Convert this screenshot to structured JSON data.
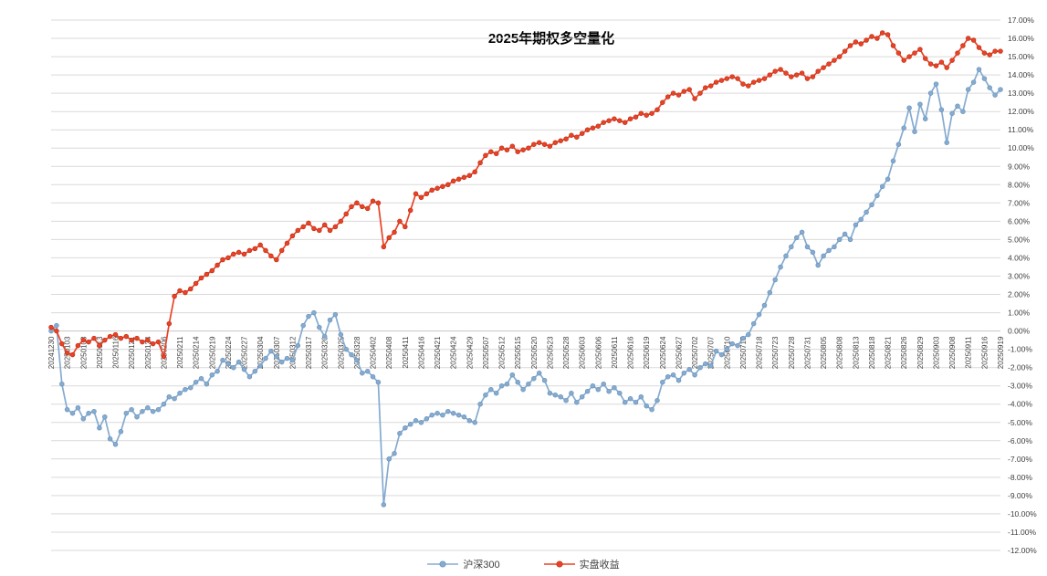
{
  "chart_data": {
    "type": "line",
    "title": "2025年期权多空量化",
    "grid": true,
    "legend_position": "bottom",
    "x_label_every": 3,
    "y_axis": {
      "min": -12,
      "max": 17,
      "step": 1,
      "format": "0.00%",
      "side": "right"
    },
    "x": [
      "20241230",
      "20241231",
      "20250102",
      "20250103",
      "20250106",
      "20250107",
      "20250108",
      "20250109",
      "20250110",
      "20250113",
      "20250114",
      "20250115",
      "20250116",
      "20250117",
      "20250120",
      "20250121",
      "20250122",
      "20250123",
      "20250124",
      "20250127",
      "20250205",
      "20250206",
      "20250207",
      "20250210",
      "20250211",
      "20250212",
      "20250213",
      "20250214",
      "20250217",
      "20250218",
      "20250219",
      "20250220",
      "20250221",
      "20250224",
      "20250225",
      "20250226",
      "20250227",
      "20250228",
      "20250303",
      "20250304",
      "20250305",
      "20250306",
      "20250307",
      "20250310",
      "20250311",
      "20250312",
      "20250313",
      "20250314",
      "20250317",
      "20250318",
      "20250319",
      "20250320",
      "20250321",
      "20250324",
      "20250325",
      "20250326",
      "20250327",
      "20250328",
      "20250331",
      "20250401",
      "20250402",
      "20250403",
      "20250407",
      "20250408",
      "20250409",
      "20250410",
      "20250411",
      "20250414",
      "20250415",
      "20250416",
      "20250417",
      "20250418",
      "20250421",
      "20250422",
      "20250423",
      "20250424",
      "20250425",
      "20250428",
      "20250429",
      "20250430",
      "20250506",
      "20250507",
      "20250508",
      "20250509",
      "20250512",
      "20250513",
      "20250514",
      "20250515",
      "20250516",
      "20250519",
      "20250520",
      "20250521",
      "20250522",
      "20250523",
      "20250526",
      "20250527",
      "20250528",
      "20250529",
      "20250530",
      "20250603",
      "20250604",
      "20250605",
      "20250606",
      "20250609",
      "20250610",
      "20250611",
      "20250612",
      "20250613",
      "20250616",
      "20250617",
      "20250618",
      "20250619",
      "20250620",
      "20250623",
      "20250624",
      "20250625",
      "20250626",
      "20250627",
      "20250630",
      "20250701",
      "20250702",
      "20250703",
      "20250704",
      "20250707",
      "20250708",
      "20250709",
      "20250710",
      "20250711",
      "20250714",
      "20250715",
      "20250716",
      "20250717",
      "20250718",
      "20250721",
      "20250722",
      "20250723",
      "20250724",
      "20250725",
      "20250728",
      "20250729",
      "20250730",
      "20250731",
      "20250801",
      "20250804",
      "20250805",
      "20250806",
      "20250807",
      "20250808",
      "20250811",
      "20250812",
      "20250813",
      "20250814",
      "20250815",
      "20250818",
      "20250819",
      "20250820",
      "20250821",
      "20250822",
      "20250825",
      "20250826",
      "20250827",
      "20250828",
      "20250829",
      "20250901",
      "20250902",
      "20250903",
      "20250904",
      "20250905",
      "20250908",
      "20250909",
      "20250910",
      "20250911",
      "20250912",
      "20250915",
      "20250916",
      "20250917",
      "20250918",
      "20250919"
    ],
    "series": [
      {
        "name": "沪深300",
        "color": "#85abd0",
        "marker_stroke": "#6b93b8",
        "values": [
          0.0,
          0.3,
          -2.9,
          -4.3,
          -4.5,
          -4.2,
          -4.8,
          -4.5,
          -4.4,
          -5.3,
          -4.7,
          -5.9,
          -6.2,
          -5.5,
          -4.5,
          -4.3,
          -4.7,
          -4.4,
          -4.2,
          -4.4,
          -4.3,
          -4.0,
          -3.6,
          -3.7,
          -3.4,
          -3.2,
          -3.1,
          -2.8,
          -2.6,
          -2.9,
          -2.4,
          -2.2,
          -1.6,
          -1.8,
          -2.0,
          -1.7,
          -2.1,
          -2.5,
          -2.2,
          -1.9,
          -1.5,
          -1.1,
          -1.4,
          -1.7,
          -1.5,
          -1.6,
          -0.8,
          0.3,
          0.8,
          1.0,
          0.2,
          -0.3,
          0.6,
          0.9,
          -0.2,
          -1.0,
          -1.3,
          -1.6,
          -2.3,
          -2.2,
          -2.5,
          -2.8,
          -9.5,
          -7.0,
          -6.7,
          -5.6,
          -5.3,
          -5.1,
          -4.9,
          -5.0,
          -4.8,
          -4.6,
          -4.5,
          -4.6,
          -4.4,
          -4.5,
          -4.6,
          -4.7,
          -4.9,
          -5.0,
          -4.0,
          -3.5,
          -3.2,
          -3.4,
          -3.0,
          -2.9,
          -2.4,
          -2.8,
          -3.2,
          -2.9,
          -2.6,
          -2.3,
          -2.7,
          -3.4,
          -3.5,
          -3.6,
          -3.8,
          -3.4,
          -3.9,
          -3.6,
          -3.3,
          -3.0,
          -3.2,
          -2.9,
          -3.3,
          -3.1,
          -3.4,
          -3.9,
          -3.7,
          -3.9,
          -3.6,
          -4.1,
          -4.3,
          -3.8,
          -2.8,
          -2.5,
          -2.4,
          -2.7,
          -2.3,
          -2.1,
          -2.4,
          -2.0,
          -1.8,
          -1.9,
          -1.1,
          -1.3,
          -1.0,
          -0.7,
          -0.8,
          -0.4,
          -0.2,
          0.4,
          0.9,
          1.4,
          2.1,
          2.8,
          3.5,
          4.1,
          4.6,
          5.1,
          5.4,
          4.6,
          4.3,
          3.6,
          4.1,
          4.4,
          4.6,
          5.0,
          5.3,
          5.0,
          5.8,
          6.1,
          6.5,
          6.9,
          7.4,
          7.9,
          8.3,
          9.3,
          10.2,
          11.1,
          12.2,
          10.9,
          12.4,
          11.6,
          13.0,
          13.5,
          12.1,
          10.3,
          11.9,
          12.3,
          12.0,
          13.2,
          13.6,
          14.3,
          13.8,
          13.3,
          12.9,
          13.2
        ]
      },
      {
        "name": "实盘收益",
        "color": "#ea4226",
        "marker_stroke": "#b93217",
        "values": [
          0.2,
          0.0,
          -0.7,
          -1.2,
          -1.3,
          -0.8,
          -0.5,
          -0.6,
          -0.4,
          -0.8,
          -0.5,
          -0.3,
          -0.2,
          -0.4,
          -0.3,
          -0.5,
          -0.4,
          -0.6,
          -0.5,
          -0.7,
          -0.6,
          -1.4,
          0.4,
          1.9,
          2.2,
          2.1,
          2.3,
          2.6,
          2.9,
          3.1,
          3.3,
          3.6,
          3.9,
          4.0,
          4.2,
          4.3,
          4.2,
          4.4,
          4.5,
          4.7,
          4.4,
          4.1,
          3.9,
          4.4,
          4.8,
          5.2,
          5.5,
          5.7,
          5.9,
          5.6,
          5.5,
          5.8,
          5.5,
          5.7,
          6.0,
          6.4,
          6.8,
          7.0,
          6.8,
          6.7,
          7.1,
          7.0,
          4.6,
          5.1,
          5.4,
          6.0,
          5.7,
          6.6,
          7.5,
          7.3,
          7.5,
          7.7,
          7.8,
          7.9,
          8.0,
          8.2,
          8.3,
          8.4,
          8.5,
          8.7,
          9.2,
          9.6,
          9.8,
          9.7,
          10.0,
          9.9,
          10.1,
          9.8,
          9.9,
          10.0,
          10.2,
          10.3,
          10.2,
          10.1,
          10.3,
          10.4,
          10.5,
          10.7,
          10.6,
          10.8,
          11.0,
          11.1,
          11.2,
          11.4,
          11.5,
          11.6,
          11.5,
          11.4,
          11.6,
          11.7,
          11.9,
          11.8,
          11.9,
          12.1,
          12.5,
          12.8,
          13.0,
          12.9,
          13.1,
          13.2,
          12.7,
          13.0,
          13.3,
          13.4,
          13.6,
          13.7,
          13.8,
          13.9,
          13.8,
          13.5,
          13.4,
          13.6,
          13.7,
          13.8,
          14.0,
          14.2,
          14.3,
          14.1,
          13.9,
          14.0,
          14.1,
          13.8,
          13.9,
          14.2,
          14.4,
          14.6,
          14.8,
          15.0,
          15.3,
          15.6,
          15.8,
          15.7,
          15.9,
          16.1,
          16.0,
          16.3,
          16.2,
          15.6,
          15.2,
          14.8,
          15.0,
          15.2,
          15.4,
          14.9,
          14.6,
          14.5,
          14.7,
          14.4,
          14.8,
          15.2,
          15.6,
          16.0,
          15.9,
          15.5,
          15.2,
          15.1,
          15.3,
          15.3
        ]
      }
    ],
    "colors": {
      "gridline": "#d9d9d9",
      "zero_line": "#c6c6c6",
      "axis_text": "#404040"
    }
  }
}
